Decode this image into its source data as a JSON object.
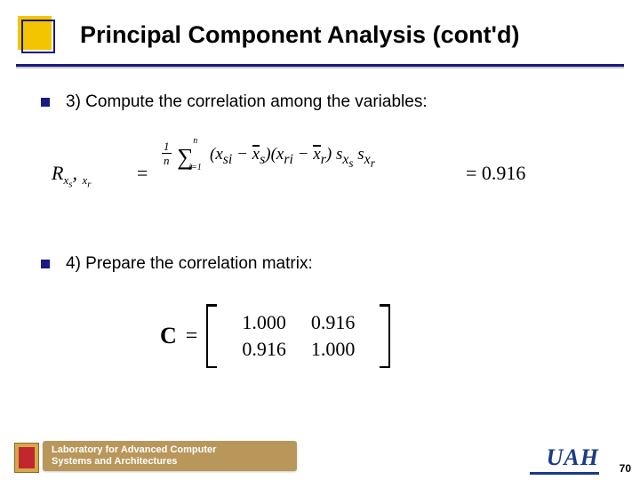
{
  "title": "Principal Component Analysis (cont'd)",
  "bullets": {
    "b1": "3) Compute the correlation among the variables:",
    "b2": "4) Prepare the correlation matrix:"
  },
  "correlation": {
    "lhs_var": "R",
    "lhs_sub1": "x",
    "lhs_sub1_sub": "s",
    "lhs_sub2": "x",
    "lhs_sub2_sub": "r",
    "eq": "=",
    "numerator_prefix_frac_top": "1",
    "numerator_prefix_frac_bot": "n",
    "sum_upper": "n",
    "sum_lower": "i=1",
    "term_open": "(",
    "term_x1": "x",
    "term_x1_sub": "si",
    "term_minus": " − ",
    "term_xbar1": "x",
    "term_xbar1_sub": "s",
    "term_close": ")",
    "term2_open": "(",
    "term2_x": "x",
    "term2_x_sub": "ri",
    "term2_minus": " − ",
    "term2_xbar": "x",
    "term2_xbar_sub": "r",
    "term2_close": ")",
    "den_s1": "s",
    "den_s1_sub": "x",
    "den_s1_subsub": "s",
    "den_s2": "s",
    "den_s2_sub": "x",
    "den_s2_subsub": "r",
    "result_eq": "= ",
    "result_val": "0.916"
  },
  "matrix": {
    "label": "C",
    "eq": "=",
    "rows": [
      [
        "1.000",
        "0.916"
      ],
      [
        "0.916",
        "1.000"
      ]
    ]
  },
  "footer": {
    "lab_line1": "Laboratory for Advanced Computer",
    "lab_line2": "Systems and Architectures",
    "uah": "UAH",
    "page": "70"
  },
  "colors": {
    "accent_yellow": "#f3c400",
    "accent_navy": "#1a1a80",
    "footer_gold": "#b9975b",
    "uah_blue": "#1a3a8a"
  }
}
